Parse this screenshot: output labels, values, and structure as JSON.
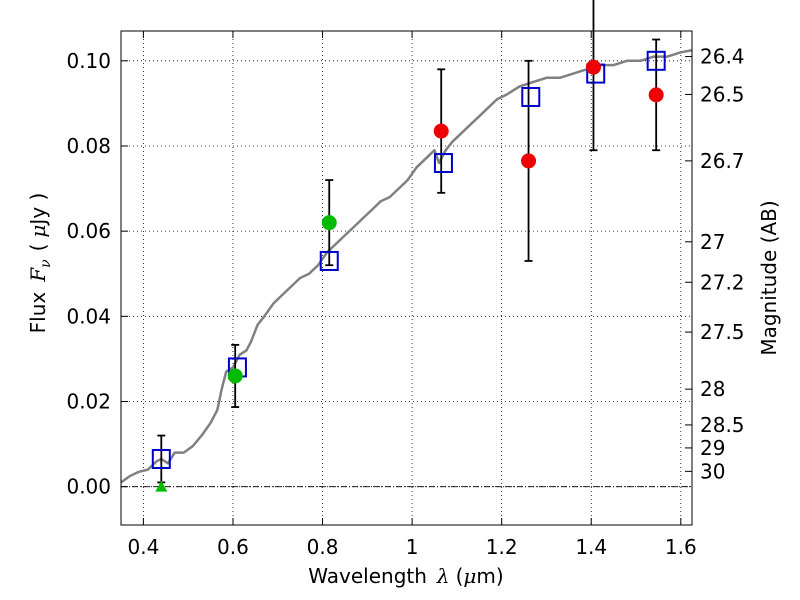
{
  "chart_data": {
    "type": "scatter",
    "xlabel": "Wavelength",
    "xlabel_symbol": "λ",
    "xlabel_unit_open": "(",
    "xlabel_unit_mu": "μ",
    "xlabel_unit_rest": "m)",
    "ylabel": "Flux",
    "ylabel_symbol": "F",
    "ylabel_subscript": "ν",
    "ylabel_unit_open": "(",
    "ylabel_unit_mu": "μ",
    "ylabel_unit_rest": "Jy )",
    "y2label": "Magnitude (AB)",
    "xlim": [
      0.35,
      1.625
    ],
    "ylim": [
      -0.009,
      0.107
    ],
    "grid": true,
    "x_ticks": [
      {
        "value": 0.4,
        "label": "0.4"
      },
      {
        "value": 0.6,
        "label": "0.6"
      },
      {
        "value": 0.8,
        "label": "0.8"
      },
      {
        "value": 1.0,
        "label": "1"
      },
      {
        "value": 1.2,
        "label": "1.2"
      },
      {
        "value": 1.4,
        "label": "1.4"
      },
      {
        "value": 1.6,
        "label": "1.6"
      }
    ],
    "y_ticks": [
      {
        "value": 0.0,
        "label": "0.00"
      },
      {
        "value": 0.02,
        "label": "0.02"
      },
      {
        "value": 0.04,
        "label": "0.04"
      },
      {
        "value": 0.06,
        "label": "0.06"
      },
      {
        "value": 0.08,
        "label": "0.08"
      },
      {
        "value": 0.1,
        "label": "0.10"
      }
    ],
    "y2_ticks": [
      {
        "flux": 0.101,
        "label": "26.4"
      },
      {
        "flux": 0.0921,
        "label": "26.5"
      },
      {
        "flux": 0.0765,
        "label": "26.7"
      },
      {
        "flux": 0.0575,
        "label": "27"
      },
      {
        "flux": 0.048,
        "label": "27.2"
      },
      {
        "flux": 0.0363,
        "label": "27.5"
      },
      {
        "flux": 0.0229,
        "label": "28"
      },
      {
        "flux": 0.0145,
        "label": "28.5"
      },
      {
        "flux": 0.0091,
        "label": "29"
      },
      {
        "flux": 0.0036,
        "label": "30"
      }
    ],
    "series": [
      {
        "kind": "line",
        "color": "#808080",
        "points": [
          [
            0.35,
            0.001
          ],
          [
            0.37,
            0.0025
          ],
          [
            0.39,
            0.0035
          ],
          [
            0.41,
            0.004
          ],
          [
            0.42,
            0.005
          ],
          [
            0.43,
            0.006
          ],
          [
            0.44,
            0.0065
          ],
          [
            0.455,
            0.0055
          ],
          [
            0.47,
            0.008
          ],
          [
            0.49,
            0.008
          ],
          [
            0.51,
            0.0095
          ],
          [
            0.53,
            0.012
          ],
          [
            0.55,
            0.015
          ],
          [
            0.565,
            0.018
          ],
          [
            0.575,
            0.023
          ],
          [
            0.585,
            0.027
          ],
          [
            0.6,
            0.028
          ],
          [
            0.615,
            0.031
          ],
          [
            0.63,
            0.032
          ],
          [
            0.64,
            0.034
          ],
          [
            0.655,
            0.038
          ],
          [
            0.67,
            0.04
          ],
          [
            0.69,
            0.043
          ],
          [
            0.71,
            0.045
          ],
          [
            0.73,
            0.047
          ],
          [
            0.75,
            0.049
          ],
          [
            0.77,
            0.05
          ],
          [
            0.79,
            0.052
          ],
          [
            0.81,
            0.055
          ],
          [
            0.83,
            0.057
          ],
          [
            0.85,
            0.059
          ],
          [
            0.87,
            0.061
          ],
          [
            0.89,
            0.063
          ],
          [
            0.91,
            0.065
          ],
          [
            0.93,
            0.067
          ],
          [
            0.95,
            0.068
          ],
          [
            0.97,
            0.07
          ],
          [
            0.99,
            0.072
          ],
          [
            1.01,
            0.075
          ],
          [
            1.03,
            0.077
          ],
          [
            1.05,
            0.079
          ],
          [
            1.06,
            0.076
          ],
          [
            1.075,
            0.079
          ],
          [
            1.09,
            0.081
          ],
          [
            1.11,
            0.083
          ],
          [
            1.13,
            0.085
          ],
          [
            1.15,
            0.087
          ],
          [
            1.17,
            0.089
          ],
          [
            1.19,
            0.091
          ],
          [
            1.21,
            0.092
          ],
          [
            1.24,
            0.094
          ],
          [
            1.27,
            0.095
          ],
          [
            1.3,
            0.096
          ],
          [
            1.33,
            0.096
          ],
          [
            1.36,
            0.097
          ],
          [
            1.39,
            0.098
          ],
          [
            1.42,
            0.099
          ],
          [
            1.45,
            0.099
          ],
          [
            1.48,
            0.1
          ],
          [
            1.51,
            0.1
          ],
          [
            1.54,
            0.101
          ],
          [
            1.57,
            0.101
          ],
          [
            1.6,
            0.102
          ],
          [
            1.625,
            0.1025
          ]
        ]
      },
      {
        "kind": "errorbar",
        "color": "#000000",
        "bars": [
          {
            "x": 0.44,
            "y": 0.0065,
            "err": 0.0055
          },
          {
            "x": 0.605,
            "y": 0.026,
            "err": 0.0073
          },
          {
            "x": 0.815,
            "y": 0.062,
            "err": 0.01
          },
          {
            "x": 1.065,
            "y": 0.0835,
            "err": 0.0145
          },
          {
            "x": 1.26,
            "y": 0.0765,
            "err": 0.0235
          },
          {
            "x": 1.405,
            "y": 0.0985,
            "err": 0.0195
          },
          {
            "x": 1.545,
            "y": 0.092,
            "err": 0.013
          }
        ]
      },
      {
        "kind": "square",
        "color": "#0000cc",
        "points": [
          [
            0.44,
            0.0065
          ],
          [
            0.61,
            0.028
          ],
          [
            0.815,
            0.053
          ],
          [
            1.07,
            0.076
          ],
          [
            1.265,
            0.0915
          ],
          [
            1.41,
            0.097
          ],
          [
            1.545,
            0.1
          ]
        ]
      },
      {
        "kind": "circle",
        "color": "#00bb00",
        "points": [
          [
            0.605,
            0.026
          ],
          [
            0.815,
            0.062
          ]
        ]
      },
      {
        "kind": "circle",
        "color": "#ee0000",
        "points": [
          [
            1.065,
            0.0835
          ],
          [
            1.26,
            0.0765
          ],
          [
            1.405,
            0.0985
          ],
          [
            1.545,
            0.092
          ]
        ]
      },
      {
        "kind": "triangle",
        "color": "#00bb00",
        "points": [
          [
            0.44,
            0.0
          ]
        ]
      }
    ]
  }
}
